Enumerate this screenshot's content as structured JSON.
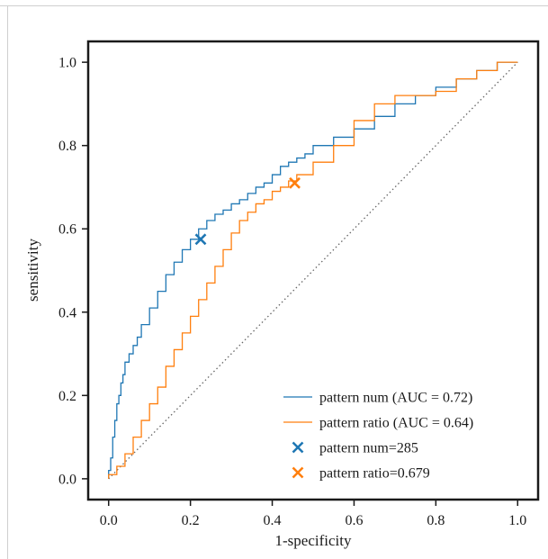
{
  "chart_data": {
    "type": "line",
    "title": "",
    "xlabel": "1-specificity",
    "ylabel": "sensitivity",
    "xlim": [
      -0.05,
      1.05
    ],
    "ylim": [
      -0.05,
      1.05
    ],
    "xticks": [
      "0.0",
      "0.2",
      "0.4",
      "0.6",
      "0.8",
      "1.0"
    ],
    "yticks": [
      "0.0",
      "0.2",
      "0.4",
      "0.6",
      "0.8",
      "1.0"
    ],
    "grid": false,
    "legend_position": "bottom-right",
    "series": [
      {
        "name": "pattern num (AUC = 0.72)",
        "color": "#1f77b4",
        "x": [
          0.0,
          0.005,
          0.01,
          0.015,
          0.02,
          0.025,
          0.03,
          0.035,
          0.04,
          0.05,
          0.06,
          0.07,
          0.08,
          0.1,
          0.12,
          0.14,
          0.16,
          0.18,
          0.2,
          0.22,
          0.24,
          0.26,
          0.28,
          0.3,
          0.32,
          0.34,
          0.36,
          0.38,
          0.4,
          0.42,
          0.44,
          0.46,
          0.48,
          0.5,
          0.55,
          0.6,
          0.65,
          0.7,
          0.75,
          0.8,
          0.85,
          0.9,
          0.95,
          1.0
        ],
        "y": [
          0.0,
          0.02,
          0.05,
          0.1,
          0.14,
          0.18,
          0.2,
          0.23,
          0.25,
          0.28,
          0.3,
          0.32,
          0.34,
          0.37,
          0.41,
          0.45,
          0.49,
          0.52,
          0.55,
          0.575,
          0.6,
          0.62,
          0.635,
          0.645,
          0.66,
          0.67,
          0.685,
          0.7,
          0.71,
          0.73,
          0.75,
          0.76,
          0.77,
          0.78,
          0.8,
          0.82,
          0.84,
          0.87,
          0.9,
          0.92,
          0.94,
          0.96,
          0.98,
          1.0
        ]
      },
      {
        "name": "pattern ratio (AUC = 0.64)",
        "color": "#ff7f0e",
        "x": [
          0.0,
          0.02,
          0.04,
          0.06,
          0.08,
          0.1,
          0.12,
          0.14,
          0.16,
          0.18,
          0.2,
          0.22,
          0.24,
          0.26,
          0.28,
          0.3,
          0.32,
          0.34,
          0.36,
          0.38,
          0.4,
          0.42,
          0.44,
          0.46,
          0.5,
          0.55,
          0.6,
          0.65,
          0.7,
          0.75,
          0.8,
          0.85,
          0.9,
          0.95,
          1.0
        ],
        "y": [
          0.0,
          0.01,
          0.03,
          0.06,
          0.1,
          0.14,
          0.18,
          0.22,
          0.27,
          0.31,
          0.35,
          0.39,
          0.43,
          0.47,
          0.51,
          0.55,
          0.59,
          0.62,
          0.64,
          0.66,
          0.67,
          0.69,
          0.7,
          0.715,
          0.73,
          0.76,
          0.8,
          0.86,
          0.9,
          0.92,
          0.92,
          0.93,
          0.96,
          0.98,
          1.0
        ]
      }
    ],
    "points": [
      {
        "name": "pattern num=285",
        "x": 0.225,
        "y": 0.575,
        "color": "#1f77b4"
      },
      {
        "name": "pattern ratio=0.679",
        "x": 0.455,
        "y": 0.71,
        "color": "#ff7f0e"
      }
    ],
    "reference_line": {
      "x": [
        0,
        1
      ],
      "y": [
        0,
        1
      ],
      "color": "#666666",
      "style": "dotted"
    }
  }
}
